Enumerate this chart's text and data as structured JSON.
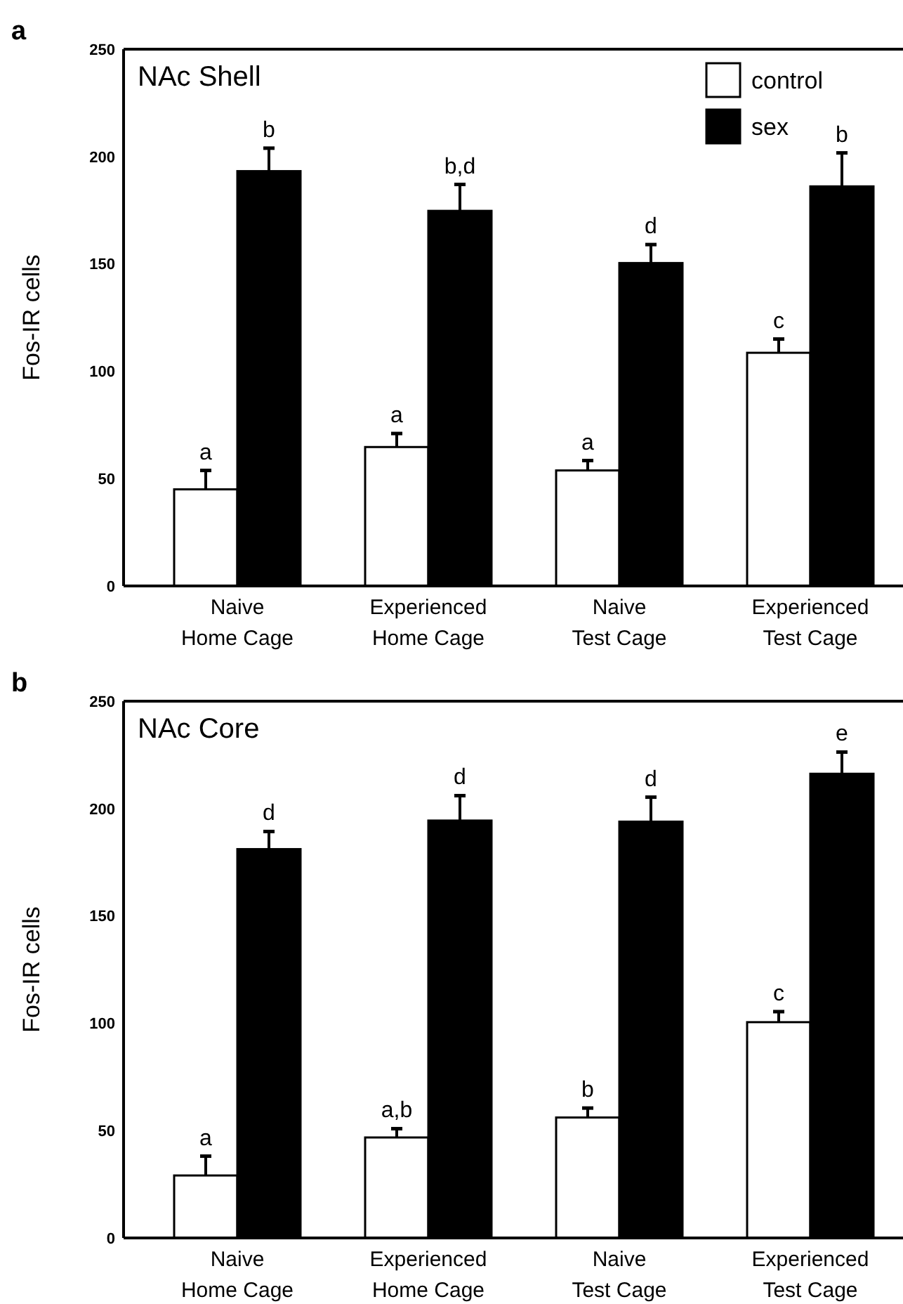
{
  "chart_data": [
    {
      "type": "bar",
      "title": "NAc Shell",
      "ylabel": "Fos-IR cells",
      "annotations": [
        "a"
      ],
      "categories": [
        "Naive\nHome Cage",
        "Experienced\nHome Cage",
        "Naive\nTest Cage",
        "Experienced\nTest Cage"
      ],
      "series": [
        {
          "name": "control",
          "color": "#ffffff",
          "values": [
            45,
            64.7,
            53.8,
            108.6
          ],
          "errors": [
            [
              45,
              53.8
            ],
            [
              64.7,
              71
            ],
            [
              53.8,
              58.4
            ],
            [
              108.6,
              115
            ]
          ],
          "value_labels": [
            "a",
            "a",
            "a",
            "c"
          ]
        },
        {
          "name": "sex",
          "color": "#000000",
          "values": [
            193.2,
            174.7,
            150.4,
            186.1
          ],
          "errors": [
            [
              193.2,
              203.9
            ],
            [
              174.7,
              187
            ],
            [
              150.4,
              159
            ],
            [
              186.1,
              201.7
            ]
          ],
          "value_labels": [
            "b",
            "b,d",
            "d",
            "b"
          ]
        }
      ],
      "ylim": [
        0,
        250
      ],
      "yticks": [
        0,
        50,
        100,
        150,
        200,
        250
      ],
      "legend": "top right"
    },
    {
      "type": "bar",
      "title": "NAc Core",
      "ylabel": "Fos-IR cells",
      "annotations": [
        "b"
      ],
      "categories": [
        "Naive\nHome Cage",
        "Experienced\nHome Cage",
        "Naive\nTest Cage",
        "Experienced\nTest Cage"
      ],
      "series": [
        {
          "color": "#ffffff",
          "values": [
            29.1,
            46.8,
            56.1,
            100.5
          ],
          "errors": [
            [
              29.1,
              38.1
            ],
            [
              46.8,
              50.9
            ],
            [
              56.1,
              60.5
            ],
            [
              100.5,
              105.4
            ]
          ],
          "value_labels": [
            "a",
            "a,b",
            "b",
            "c"
          ]
        },
        {
          "color": "#000000",
          "values": [
            181.1,
            194.4,
            193.9,
            216.2
          ],
          "errors": [
            [
              181.1,
              189.3
            ],
            [
              194.4,
              206
            ],
            [
              193.9,
              205.3
            ],
            [
              216.2,
              226.3
            ]
          ],
          "value_labels": [
            "d",
            "d",
            "d",
            "e"
          ]
        }
      ],
      "ylim": [
        0,
        250
      ],
      "yticks": [
        0,
        50,
        100,
        150,
        200,
        250
      ]
    }
  ]
}
